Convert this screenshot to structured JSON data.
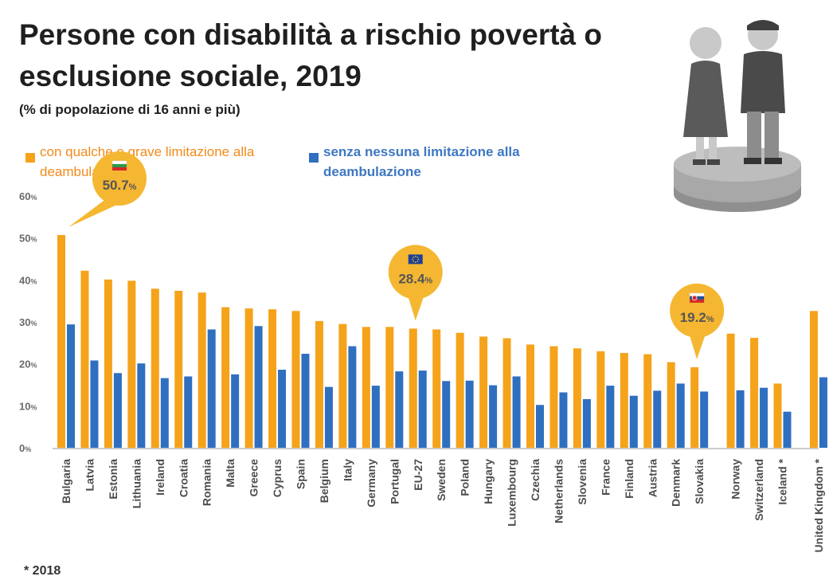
{
  "title": "Persone con disabilità a rischio povertà o esclusione sociale, 2019",
  "subtitle": "(% di popolazione di 16 anni e più)",
  "footnote": "* 2018",
  "colors": {
    "orange": "#f5a31a",
    "blue": "#2f6fc0",
    "legend_orange_text": "#f28a1a",
    "legend_blue_text": "#3e78c2",
    "callout": "#f5b731",
    "axis_text": "#6b6b6b"
  },
  "callouts": [
    {
      "flag": "bulgaria-flag-icon",
      "text": "50.7",
      "suffix": "%",
      "category": "Bulgaria"
    },
    {
      "flag": "eu-flag-icon",
      "text": "28.4",
      "suffix": "%",
      "category": "EU-27"
    },
    {
      "flag": "slovakia-flag-icon",
      "text": "19.2",
      "suffix": "%",
      "category": "Slovakia"
    }
  ],
  "chart_data": {
    "type": "bar",
    "ylim": [
      0,
      60
    ],
    "y_ticks": [
      0,
      10,
      20,
      30,
      40,
      50,
      60
    ],
    "y_tick_suffix": "%",
    "grid": false,
    "legend_position": "top-left",
    "categories": [
      "Bulgaria",
      "Latvia",
      "Estonia",
      "Lithuania",
      "Ireland",
      "Croatia",
      "Romania",
      "Malta",
      "Greece",
      "Cyprus",
      "Spain",
      "Belgium",
      "Italy",
      "Germany",
      "Portugal",
      "EU-27",
      "Sweden",
      "Poland",
      "Hungary",
      "Luxembourg",
      "Czechia",
      "Netherlands",
      "Slovenia",
      "France",
      "Finland",
      "Austria",
      "Denmark",
      "Slovakia",
      "Norway",
      "Switzerland",
      "Iceland *",
      "United Kingdom *"
    ],
    "groups_after_index": [
      27,
      30
    ],
    "series": [
      {
        "name": "con qualche o grave limitazione alla deambulazione",
        "values": [
          50.7,
          42.2,
          40.1,
          39.8,
          37.9,
          37.4,
          37.0,
          33.5,
          33.2,
          33.0,
          32.6,
          30.2,
          29.5,
          28.8,
          28.8,
          28.4,
          28.2,
          27.4,
          26.5,
          26.1,
          24.6,
          24.2,
          23.7,
          23.0,
          22.6,
          22.3,
          20.4,
          19.2,
          27.2,
          26.2,
          15.3,
          32.6
        ]
      },
      {
        "name": "senza nessuna limitazione alla deambulazione",
        "values": [
          29.4,
          20.8,
          17.8,
          20.1,
          16.6,
          17.0,
          28.2,
          17.5,
          29.0,
          18.6,
          22.4,
          14.5,
          24.2,
          14.8,
          18.2,
          18.4,
          15.9,
          16.0,
          14.9,
          17.0,
          10.2,
          13.2,
          11.6,
          14.8,
          12.4,
          13.6,
          15.3,
          13.4,
          13.7,
          14.3,
          8.6,
          16.8
        ]
      }
    ]
  }
}
